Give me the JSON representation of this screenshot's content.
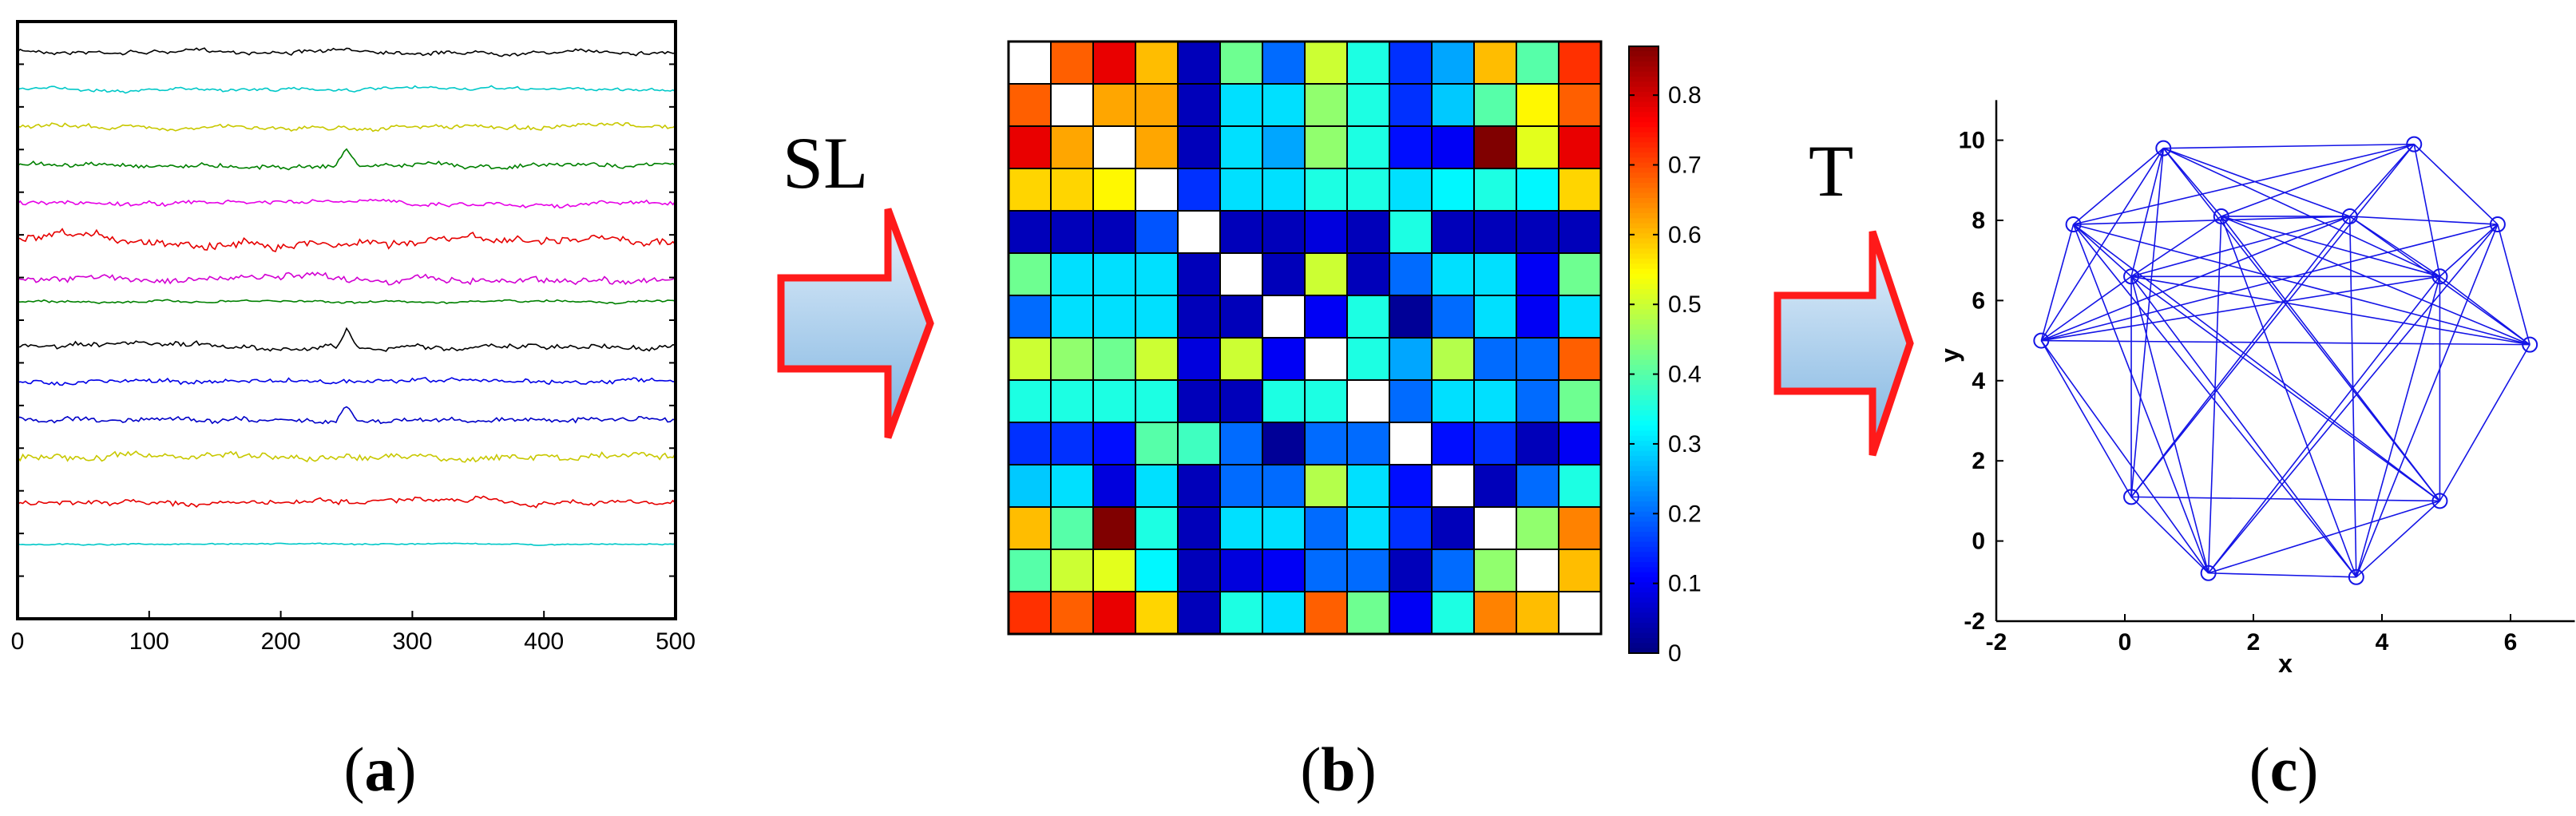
{
  "panels": {
    "a": {
      "label_open": "(",
      "label_letter": "a",
      "label_close": ")"
    },
    "b": {
      "label_open": "(",
      "label_letter": "b",
      "label_close": ")"
    },
    "c": {
      "label_open": "(",
      "label_letter": "c",
      "label_close": ")"
    }
  },
  "arrows": {
    "first": "SL",
    "second": "T"
  },
  "colors": {
    "arrow_stroke": "#ff1a1a",
    "arrow_fill_top": "#e6f1fb",
    "arrow_fill_bottom": "#7db3e0",
    "graph_edge": "#1414e6"
  },
  "chart_data": [
    {
      "type": "line",
      "panel": "a",
      "x_ticks": [
        "0",
        "100",
        "200",
        "300",
        "400",
        "500"
      ],
      "xlim": [
        0,
        500
      ],
      "grid": false,
      "series": [
        {
          "color": "#000000",
          "baseline": 1,
          "amp": 0.25
        },
        {
          "color": "#00c8c8",
          "baseline": 2,
          "amp": 0.2
        },
        {
          "color": "#c8c800",
          "baseline": 3,
          "amp": 0.28
        },
        {
          "color": "#008000",
          "baseline": 4,
          "amp": 0.3
        },
        {
          "color": "#e600e6",
          "baseline": 5,
          "amp": 0.3
        },
        {
          "color": "#e60000",
          "baseline": 6,
          "amp": 0.55
        },
        {
          "color": "#d200d2",
          "baseline": 7,
          "amp": 0.45
        },
        {
          "color": "#008000",
          "baseline": 7.6,
          "amp": 0.15
        },
        {
          "color": "#000000",
          "baseline": 8.8,
          "amp": 0.35
        },
        {
          "color": "#0000e6",
          "baseline": 9.7,
          "amp": 0.3
        },
        {
          "color": "#0000c8",
          "baseline": 10.7,
          "amp": 0.35
        },
        {
          "color": "#c8c800",
          "baseline": 11.7,
          "amp": 0.45
        },
        {
          "color": "#e60000",
          "baseline": 12.9,
          "amp": 0.35
        },
        {
          "color": "#00c8c8",
          "baseline": 14,
          "amp": 0.08
        }
      ]
    },
    {
      "type": "heatmap",
      "panel": "b",
      "colorbar_ticks": [
        "0",
        "0.1",
        "0.2",
        "0.3",
        "0.4",
        "0.5",
        "0.6",
        "0.7",
        "0.8"
      ],
      "clim": [
        0,
        0.87
      ],
      "matrix": [
        [
          null,
          0.68,
          0.78,
          0.6,
          0.05,
          0.42,
          0.2,
          0.5,
          0.35,
          0.15,
          0.25,
          0.6,
          0.4,
          0.72
        ],
        [
          0.68,
          null,
          0.62,
          0.62,
          0.05,
          0.3,
          0.3,
          0.45,
          0.35,
          0.15,
          0.28,
          0.4,
          0.55,
          0.68
        ],
        [
          0.78,
          0.62,
          null,
          0.62,
          0.05,
          0.3,
          0.25,
          0.45,
          0.35,
          0.12,
          0.1,
          0.87,
          0.52,
          0.78
        ],
        [
          0.58,
          0.58,
          0.55,
          null,
          0.15,
          0.3,
          0.3,
          0.35,
          0.35,
          0.3,
          0.32,
          0.35,
          0.32,
          0.58
        ],
        [
          0.05,
          0.05,
          0.05,
          0.18,
          null,
          0.05,
          0.05,
          0.08,
          0.05,
          0.35,
          0.05,
          0.05,
          0.05,
          0.05
        ],
        [
          0.42,
          0.3,
          0.3,
          0.3,
          0.05,
          null,
          0.05,
          0.5,
          0.05,
          0.2,
          0.3,
          0.3,
          0.1,
          0.42
        ],
        [
          0.2,
          0.3,
          0.3,
          0.3,
          0.05,
          0.05,
          null,
          0.1,
          0.35,
          0.02,
          0.2,
          0.3,
          0.1,
          0.3
        ],
        [
          0.5,
          0.45,
          0.42,
          0.5,
          0.08,
          0.5,
          0.1,
          null,
          0.35,
          0.25,
          0.48,
          0.2,
          0.2,
          0.68
        ],
        [
          0.35,
          0.35,
          0.35,
          0.35,
          0.05,
          0.05,
          0.35,
          0.35,
          null,
          0.2,
          0.3,
          0.3,
          0.2,
          0.42
        ],
        [
          0.15,
          0.15,
          0.12,
          0.4,
          0.38,
          0.2,
          0.02,
          0.2,
          0.2,
          null,
          0.12,
          0.15,
          0.05,
          0.1
        ],
        [
          0.28,
          0.3,
          0.08,
          0.3,
          0.05,
          0.2,
          0.2,
          0.48,
          0.3,
          0.12,
          null,
          0.05,
          0.2,
          0.35
        ],
        [
          0.6,
          0.4,
          0.87,
          0.35,
          0.05,
          0.3,
          0.3,
          0.2,
          0.3,
          0.15,
          0.05,
          null,
          0.45,
          0.65
        ],
        [
          0.4,
          0.5,
          0.52,
          0.32,
          0.05,
          0.08,
          0.1,
          0.2,
          0.2,
          0.05,
          0.2,
          0.45,
          null,
          0.6
        ],
        [
          0.72,
          0.68,
          0.78,
          0.58,
          0.05,
          0.35,
          0.3,
          0.68,
          0.42,
          0.1,
          0.35,
          0.65,
          0.6,
          null
        ]
      ]
    },
    {
      "type": "scatter",
      "panel": "c",
      "xlabel": "x",
      "ylabel": "y",
      "xlim": [
        -2,
        7
      ],
      "ylim": [
        -2,
        11
      ],
      "x_ticks": [
        "-2",
        "0",
        "2",
        "4",
        "6"
      ],
      "y_ticks": [
        "-2",
        "0",
        "2",
        "4",
        "6",
        "8",
        "10"
      ],
      "nodes": [
        {
          "x": 0.6,
          "y": 9.8
        },
        {
          "x": 4.5,
          "y": 9.9
        },
        {
          "x": -0.8,
          "y": 7.9
        },
        {
          "x": 1.5,
          "y": 8.1
        },
        {
          "x": 3.5,
          "y": 8.1
        },
        {
          "x": 5.8,
          "y": 7.9
        },
        {
          "x": 0.1,
          "y": 6.6
        },
        {
          "x": 4.9,
          "y": 6.6
        },
        {
          "x": -1.3,
          "y": 5.0
        },
        {
          "x": 6.3,
          "y": 4.9
        },
        {
          "x": 0.1,
          "y": 1.1
        },
        {
          "x": 4.9,
          "y": 1.0
        },
        {
          "x": 1.3,
          "y": -0.8
        },
        {
          "x": 3.6,
          "y": -0.9
        }
      ]
    }
  ]
}
